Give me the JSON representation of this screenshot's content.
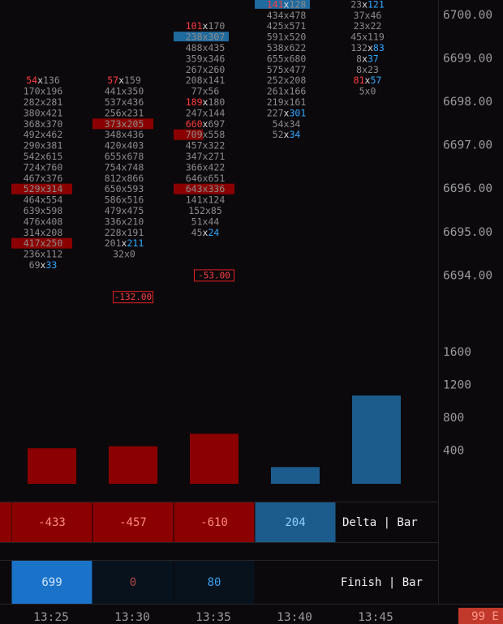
{
  "chart_data": [
    {
      "type": "footprint",
      "ylim": [
        6693,
        6700.35
      ],
      "yticks": [
        {
          "value": 6700,
          "label": "6700.00"
        },
        {
          "value": 6699,
          "label": "6699.00"
        },
        {
          "value": 6698,
          "label": "6698.00"
        },
        {
          "value": 6697,
          "label": "6697.00"
        },
        {
          "value": 6696,
          "label": "6696.00"
        },
        {
          "value": 6695,
          "label": "6695.00"
        },
        {
          "value": 6694,
          "label": "6694.00"
        }
      ],
      "separator": "x",
      "columns": [
        {
          "cells": [
            {
              "p": 6698.5,
              "bid": 54,
              "ask": 136,
              "emph": "bid"
            },
            {
              "p": 6698.25,
              "bid": 170,
              "ask": 196
            },
            {
              "p": 6698,
              "bid": 282,
              "ask": 281
            },
            {
              "p": 6697.75,
              "bid": 380,
              "ask": 421
            },
            {
              "p": 6697.5,
              "bid": 368,
              "ask": 370
            },
            {
              "p": 6697.25,
              "bid": 492,
              "ask": 462
            },
            {
              "p": 6697,
              "bid": 290,
              "ask": 381
            },
            {
              "p": 6696.75,
              "bid": 542,
              "ask": 615
            },
            {
              "p": 6696.5,
              "bid": 724,
              "ask": 760
            },
            {
              "p": 6696.25,
              "bid": 467,
              "ask": 376
            },
            {
              "p": 6696,
              "bid": 529,
              "ask": 314,
              "bg": "red"
            },
            {
              "p": 6695.75,
              "bid": 464,
              "ask": 554
            },
            {
              "p": 6695.5,
              "bid": 639,
              "ask": 598
            },
            {
              "p": 6695.25,
              "bid": 476,
              "ask": 408
            },
            {
              "p": 6695,
              "bid": 314,
              "ask": 208
            },
            {
              "p": 6694.75,
              "bid": 417,
              "ask": 250,
              "bg": "red"
            },
            {
              "p": 6694.5,
              "bid": 236,
              "ask": 112
            },
            {
              "p": 6694.25,
              "bid": 69,
              "ask": 33,
              "emph": "ask"
            }
          ]
        },
        {
          "cells": [
            {
              "p": 6698.5,
              "bid": 57,
              "ask": 159,
              "emph": "bid"
            },
            {
              "p": 6698.25,
              "bid": 441,
              "ask": 350
            },
            {
              "p": 6698,
              "bid": 537,
              "ask": 436
            },
            {
              "p": 6697.75,
              "bid": 256,
              "ask": 231
            },
            {
              "p": 6697.5,
              "bid": 373,
              "ask": 205,
              "bg": "red"
            },
            {
              "p": 6697.25,
              "bid": 348,
              "ask": 436
            },
            {
              "p": 6697,
              "bid": 420,
              "ask": 403
            },
            {
              "p": 6696.75,
              "bid": 655,
              "ask": 678
            },
            {
              "p": 6696.5,
              "bid": 754,
              "ask": 748
            },
            {
              "p": 6696.25,
              "bid": 812,
              "ask": 866
            },
            {
              "p": 6696,
              "bid": 650,
              "ask": 593
            },
            {
              "p": 6695.75,
              "bid": 586,
              "ask": 516
            },
            {
              "p": 6695.5,
              "bid": 479,
              "ask": 475
            },
            {
              "p": 6695.25,
              "bid": 336,
              "ask": 210
            },
            {
              "p": 6695,
              "bid": 228,
              "ask": 191
            },
            {
              "p": 6694.75,
              "bid": 201,
              "ask": 211,
              "emph": "ask"
            },
            {
              "p": 6694.5,
              "bid": 32,
              "ask": 0
            }
          ],
          "marker": {
            "value": -132,
            "label": "-132.00",
            "p": 6693.5
          }
        },
        {
          "cells": [
            {
              "p": 6699.75,
              "bid": 101,
              "ask": 170,
              "emph": "bid"
            },
            {
              "p": 6699.5,
              "bid": 238,
              "ask": 307,
              "bg": "blue"
            },
            {
              "p": 6699.25,
              "bid": 488,
              "ask": 435
            },
            {
              "p": 6699,
              "bid": 359,
              "ask": 346
            },
            {
              "p": 6698.75,
              "bid": 267,
              "ask": 260
            },
            {
              "p": 6698.5,
              "bid": 208,
              "ask": 141
            },
            {
              "p": 6698.25,
              "bid": 77,
              "ask": 56
            },
            {
              "p": 6698,
              "bid": 189,
              "ask": 180,
              "emph": "bid"
            },
            {
              "p": 6697.75,
              "bid": 247,
              "ask": 144
            },
            {
              "p": 6697.5,
              "bid": 660,
              "ask": 697,
              "emph": "bid"
            },
            {
              "p": 6697.25,
              "bid": 709,
              "ask": 558,
              "bg": "red-half"
            },
            {
              "p": 6697,
              "bid": 457,
              "ask": 322
            },
            {
              "p": 6696.75,
              "bid": 347,
              "ask": 271
            },
            {
              "p": 6696.5,
              "bid": 366,
              "ask": 422
            },
            {
              "p": 6696.25,
              "bid": 646,
              "ask": 651
            },
            {
              "p": 6696,
              "bid": 643,
              "ask": 336,
              "bg": "red"
            },
            {
              "p": 6695.75,
              "bid": 141,
              "ask": 124
            },
            {
              "p": 6695.5,
              "bid": 152,
              "ask": 85
            },
            {
              "p": 6695.25,
              "bid": 51,
              "ask": 44
            },
            {
              "p": 6695,
              "bid": 45,
              "ask": 24,
              "emph": "ask"
            }
          ],
          "marker": {
            "value": -53,
            "label": "-53.00",
            "p": 6694
          }
        },
        {
          "cells": [
            {
              "p": 6700.25,
              "bid": 141,
              "ask": 128,
              "bg": "blue",
              "emph": "bid"
            },
            {
              "p": 6700,
              "bid": 434,
              "ask": 478
            },
            {
              "p": 6699.75,
              "bid": 425,
              "ask": 571
            },
            {
              "p": 6699.5,
              "bid": 591,
              "ask": 520
            },
            {
              "p": 6699.25,
              "bid": 538,
              "ask": 622
            },
            {
              "p": 6699,
              "bid": 655,
              "ask": 680
            },
            {
              "p": 6698.75,
              "bid": 575,
              "ask": 477
            },
            {
              "p": 6698.5,
              "bid": 252,
              "ask": 208
            },
            {
              "p": 6698.25,
              "bid": 261,
              "ask": 166
            },
            {
              "p": 6698,
              "bid": 219,
              "ask": 161
            },
            {
              "p": 6697.75,
              "bid": 227,
              "ask": 301,
              "emph": "ask"
            },
            {
              "p": 6697.5,
              "bid": 54,
              "ask": 34
            },
            {
              "p": 6697.25,
              "bid": 52,
              "ask": 34,
              "emph": "ask"
            }
          ]
        },
        {
          "cells": [
            {
              "p": 6700.25,
              "bid": 23,
              "ask": 121,
              "emph": "ask"
            },
            {
              "p": 6700,
              "bid": 37,
              "ask": 46
            },
            {
              "p": 6699.75,
              "bid": 23,
              "ask": 22
            },
            {
              "p": 6699.5,
              "bid": 45,
              "ask": 119
            },
            {
              "p": 6699.25,
              "bid": 132,
              "ask": 83,
              "emph": "ask"
            },
            {
              "p": 6699,
              "bid": 8,
              "ask": 37,
              "emph": "ask"
            },
            {
              "p": 6698.75,
              "bid": 8,
              "ask": 23
            },
            {
              "p": 6698.5,
              "bid": 81,
              "ask": 57,
              "emph": "both"
            },
            {
              "p": 6698.25,
              "bid": 5,
              "ask": 0
            }
          ]
        }
      ]
    },
    {
      "type": "bar",
      "categories": [
        "13:25",
        "13:30",
        "13:35",
        "13:40",
        "13:45"
      ],
      "values": [
        433,
        457,
        610,
        204,
        1076
      ],
      "colors": [
        "#8b0000",
        "#8b0000",
        "#8b0000",
        "#1b5c8c",
        "#1b5c8c"
      ],
      "ylim": [
        0,
        2000
      ],
      "yticks": [
        400,
        800,
        1200,
        1600
      ]
    }
  ],
  "delta": {
    "label": "Delta | Bar",
    "values": [
      -433,
      -457,
      -610,
      204
    ]
  },
  "finish": {
    "label": "Finish | Bar",
    "values": [
      699,
      0,
      80
    ]
  },
  "corner_badge": "99 E"
}
